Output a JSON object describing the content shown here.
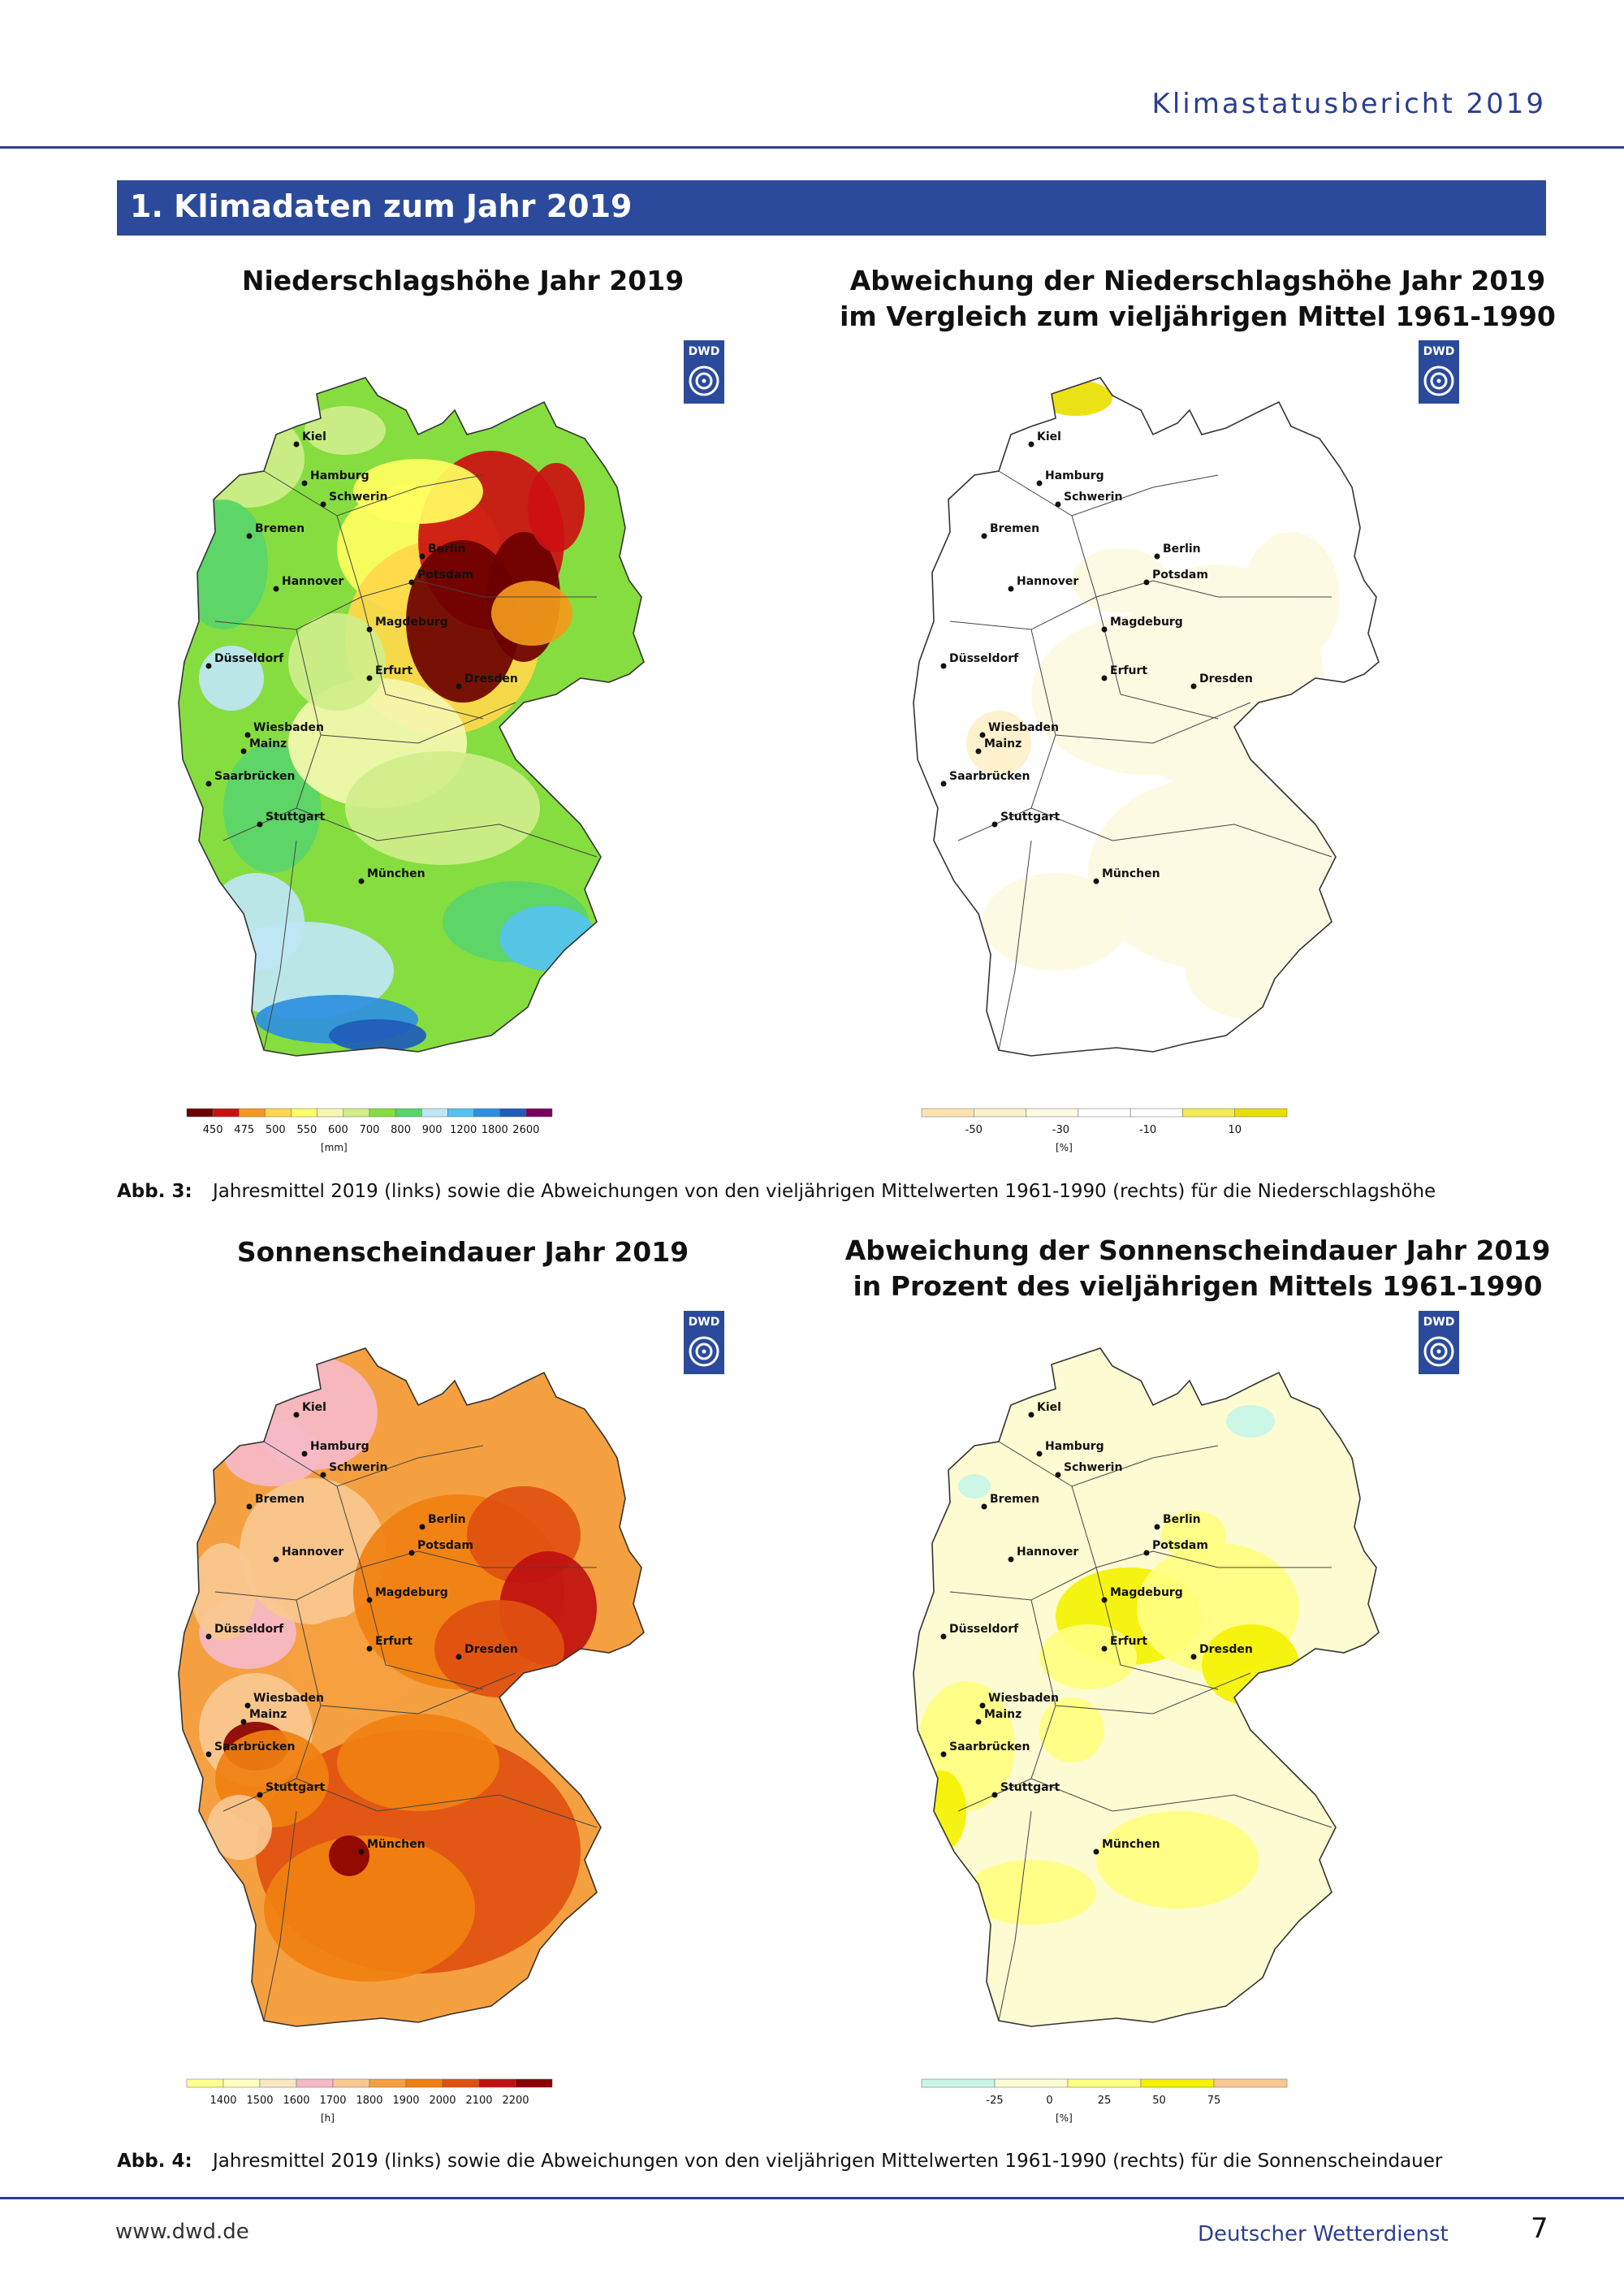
{
  "header": {
    "title": "Klimastatusbericht 2019"
  },
  "section": {
    "title": "1. Klimadaten zum Jahr 2019"
  },
  "maps": [
    {
      "id": "m1",
      "title": "Niederschlagshöhe Jahr 2019",
      "logo": "DWD",
      "palette": [
        "#6b0000",
        "#cc1010",
        "#f39a1a",
        "#ffd84a",
        "#ffff60",
        "#f5f7b0",
        "#cfee8a",
        "#86dd40",
        "#5ad46a",
        "#bfe6f5",
        "#55c3f0",
        "#2e8fe0",
        "#1f5bb8",
        "#7a0060"
      ],
      "legend": {
        "ticks": [
          "450",
          "475",
          "500",
          "550",
          "600",
          "700",
          "800",
          "900",
          "1200",
          "1800",
          "2600"
        ],
        "unit": "[mm]"
      }
    },
    {
      "id": "m2",
      "title": "Abweichung der Niederschlagshöhe Jahr 2019 im Vergleich zum vieljährigen Mittel 1961-1990",
      "title_lines": [
        "Abweichung der Niederschlagshöhe Jahr 2019",
        "im Vergleich zum vieljährigen Mittel 1961-1990"
      ],
      "logo": "DWD",
      "palette": [
        "#fde3b0",
        "#fdf1c9",
        "#fdfae2",
        "#ffffff",
        "#ffffff",
        "#f3ec4a",
        "#e8df00"
      ],
      "legend": {
        "ticks": [
          "-50",
          "-30",
          "-10",
          "10"
        ],
        "unit": "[%]"
      }
    },
    {
      "id": "m3",
      "title": "Sonnenscheindauer Jahr 2019",
      "logo": "DWD",
      "palette": [
        "#ffff90",
        "#ffffc0",
        "#f8e8c0",
        "#f5b8c8",
        "#f8c890",
        "#f5a040",
        "#f08010",
        "#e05010",
        "#c01010",
        "#8b0000"
      ],
      "legend": {
        "ticks": [
          "1400",
          "1500",
          "1600",
          "1700",
          "1800",
          "1900",
          "2000",
          "2100",
          "2200"
        ],
        "unit": "[h]"
      }
    },
    {
      "id": "m4",
      "title": "Abweichung der Sonnenscheindauer Jahr 2019 in Prozent des vieljährigen Mittels 1961-1990",
      "title_lines": [
        "Abweichung der Sonnenscheindauer Jahr 2019",
        "in Prozent des vieljährigen Mittels 1961-1990"
      ],
      "logo": "DWD",
      "palette": [
        "#c8f5e6",
        "#fdfbd2",
        "#ffff80",
        "#f4f200",
        "#f8c890"
      ],
      "legend": {
        "ticks": [
          "-25",
          "0",
          "25",
          "50",
          "75"
        ],
        "unit": "[%]"
      }
    }
  ],
  "cities": [
    {
      "name": "Kiel"
    },
    {
      "name": "Hamburg"
    },
    {
      "name": "Schwerin"
    },
    {
      "name": "Bremen"
    },
    {
      "name": "Berlin"
    },
    {
      "name": "Hannover"
    },
    {
      "name": "Potsdam"
    },
    {
      "name": "Magdeburg"
    },
    {
      "name": "Düsseldorf"
    },
    {
      "name": "Erfurt"
    },
    {
      "name": "Dresden"
    },
    {
      "name": "Wiesbaden"
    },
    {
      "name": "Mainz"
    },
    {
      "name": "Saarbrücken"
    },
    {
      "name": "Stuttgart"
    },
    {
      "name": "München"
    }
  ],
  "captions": [
    {
      "label": "Abb. 3:",
      "text": "Jahresmittel 2019 (links) sowie die Abweichungen von den vieljährigen Mittelwerten 1961-1990 (rechts) für die Niederschlagshöhe"
    },
    {
      "label": "Abb. 4:",
      "text": "Jahresmittel 2019 (links) sowie die Abweichungen von den vieljährigen Mittelwerten 1961-1990 (rechts) für die Sonnenscheindauer"
    }
  ],
  "footer": {
    "left": "www.dwd.de",
    "middle": "Deutscher Wetterdienst",
    "page": "7"
  }
}
